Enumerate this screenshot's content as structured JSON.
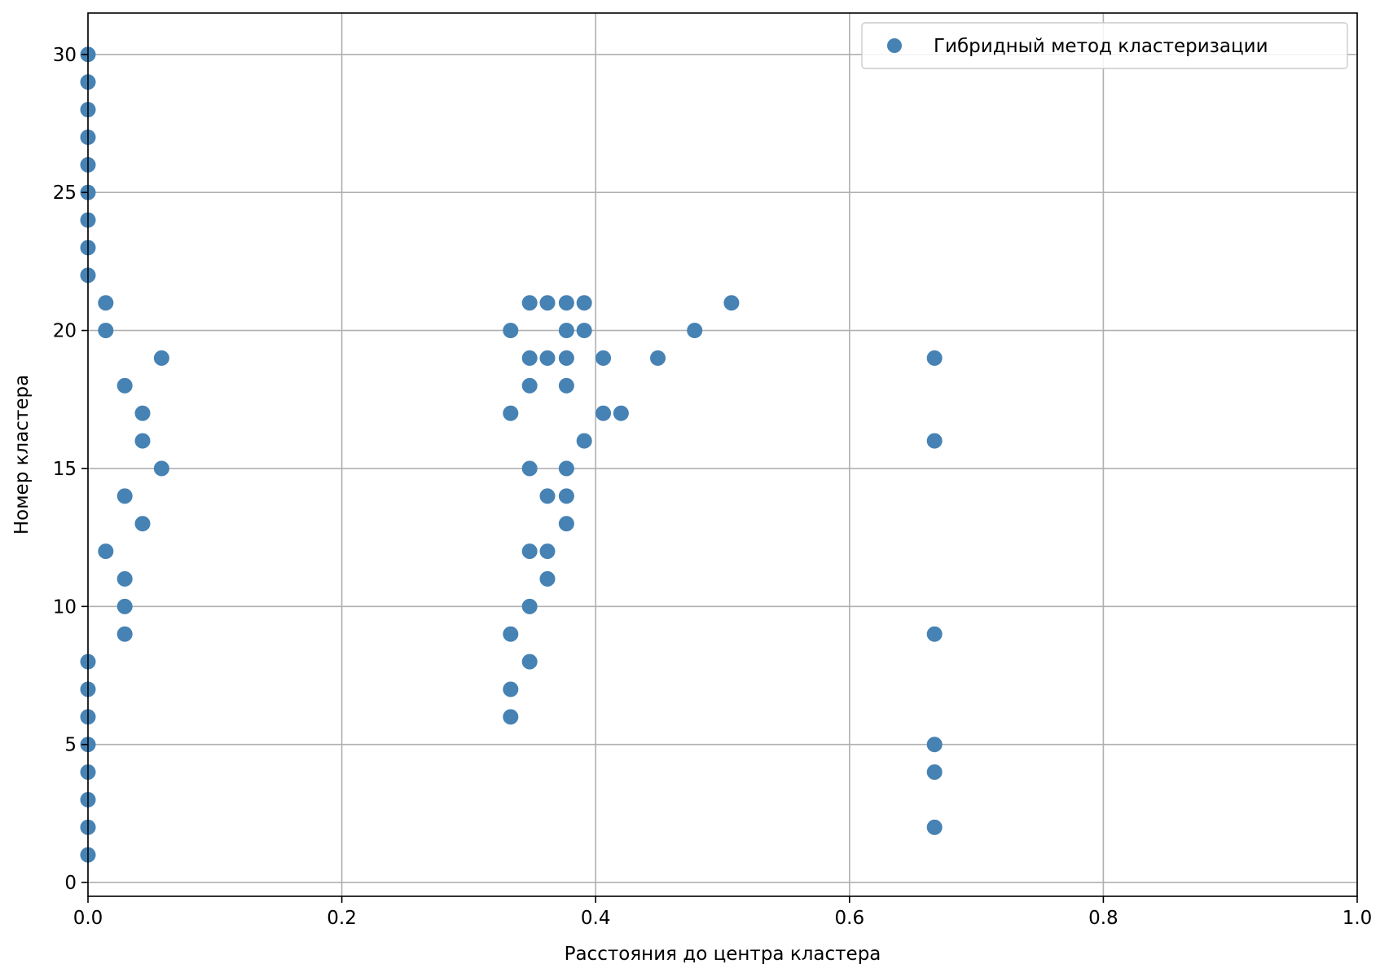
{
  "chart_data": {
    "type": "scatter",
    "title": "",
    "xlabel": "Расстояния до центра кластера",
    "ylabel": "Номер кластера",
    "xlim": [
      0.0,
      1.0
    ],
    "ylim": [
      -0.5,
      31.5
    ],
    "xticks": [
      0.0,
      0.2,
      0.4,
      0.6,
      0.8,
      1.0
    ],
    "xtick_labels": [
      "0.0",
      "0.2",
      "0.4",
      "0.6",
      "0.8",
      "1.0"
    ],
    "yticks": [
      0,
      5,
      10,
      15,
      20,
      25,
      30
    ],
    "ytick_labels": [
      "0",
      "5",
      "10",
      "15",
      "20",
      "25",
      "30"
    ],
    "grid": true,
    "legend_position": "top-right",
    "series": [
      {
        "name": "Гибридный метод кластеризации",
        "color": "#4682b4",
        "points": [
          [
            0.0,
            30
          ],
          [
            0.0,
            29
          ],
          [
            0.0,
            28
          ],
          [
            0.0,
            27
          ],
          [
            0.0,
            26
          ],
          [
            0.0,
            25
          ],
          [
            0.0,
            24
          ],
          [
            0.0,
            23
          ],
          [
            0.0,
            22
          ],
          [
            0.014,
            21
          ],
          [
            0.014,
            20
          ],
          [
            0.058,
            19
          ],
          [
            0.029,
            18
          ],
          [
            0.043,
            17
          ],
          [
            0.043,
            16
          ],
          [
            0.058,
            15
          ],
          [
            0.029,
            14
          ],
          [
            0.043,
            13
          ],
          [
            0.014,
            12
          ],
          [
            0.029,
            11
          ],
          [
            0.029,
            10
          ],
          [
            0.029,
            9
          ],
          [
            0.0,
            8
          ],
          [
            0.0,
            7
          ],
          [
            0.0,
            6
          ],
          [
            0.0,
            5
          ],
          [
            0.0,
            4
          ],
          [
            0.0,
            3
          ],
          [
            0.0,
            2
          ],
          [
            0.0,
            1
          ],
          [
            0.348,
            21
          ],
          [
            0.362,
            21
          ],
          [
            0.377,
            21
          ],
          [
            0.391,
            21
          ],
          [
            0.507,
            21
          ],
          [
            0.333,
            20
          ],
          [
            0.377,
            20
          ],
          [
            0.391,
            20
          ],
          [
            0.478,
            20
          ],
          [
            0.348,
            19
          ],
          [
            0.362,
            19
          ],
          [
            0.377,
            19
          ],
          [
            0.406,
            19
          ],
          [
            0.449,
            19
          ],
          [
            0.667,
            19
          ],
          [
            0.348,
            18
          ],
          [
            0.377,
            18
          ],
          [
            0.333,
            17
          ],
          [
            0.406,
            17
          ],
          [
            0.42,
            17
          ],
          [
            0.391,
            16
          ],
          [
            0.667,
            16
          ],
          [
            0.348,
            15
          ],
          [
            0.377,
            15
          ],
          [
            0.362,
            14
          ],
          [
            0.377,
            14
          ],
          [
            0.377,
            13
          ],
          [
            0.348,
            12
          ],
          [
            0.362,
            12
          ],
          [
            0.362,
            11
          ],
          [
            0.348,
            10
          ],
          [
            0.333,
            9
          ],
          [
            0.667,
            9
          ],
          [
            0.348,
            8
          ],
          [
            0.333,
            7
          ],
          [
            0.333,
            6
          ],
          [
            0.667,
            5
          ],
          [
            0.667,
            4
          ],
          [
            0.667,
            2
          ]
        ]
      }
    ]
  }
}
